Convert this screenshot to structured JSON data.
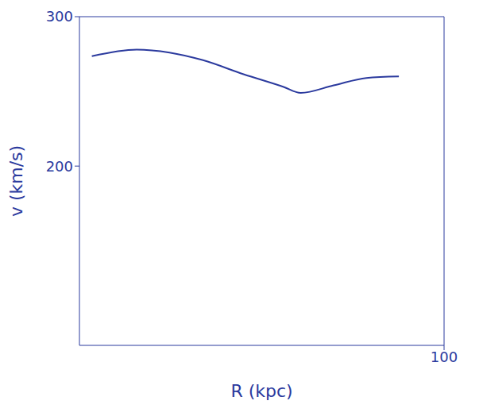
{
  "chart_data": {
    "type": "line",
    "x_label": "R (kpc)",
    "y_label": "v (km/s)",
    "x": [
      3.4,
      15.7,
      24.7,
      33.7,
      45,
      56,
      60.7,
      69.7,
      78.7,
      87.6
    ],
    "values": [
      273.6,
      278,
      276,
      271,
      261.5,
      253,
      249,
      254,
      259,
      260
    ],
    "color": "#2b3a9e",
    "xlim": [
      0,
      100
    ],
    "xticks": [
      100
    ],
    "ylim": [
      80,
      300
    ],
    "yticks": [
      200,
      300
    ],
    "grid": false
  }
}
